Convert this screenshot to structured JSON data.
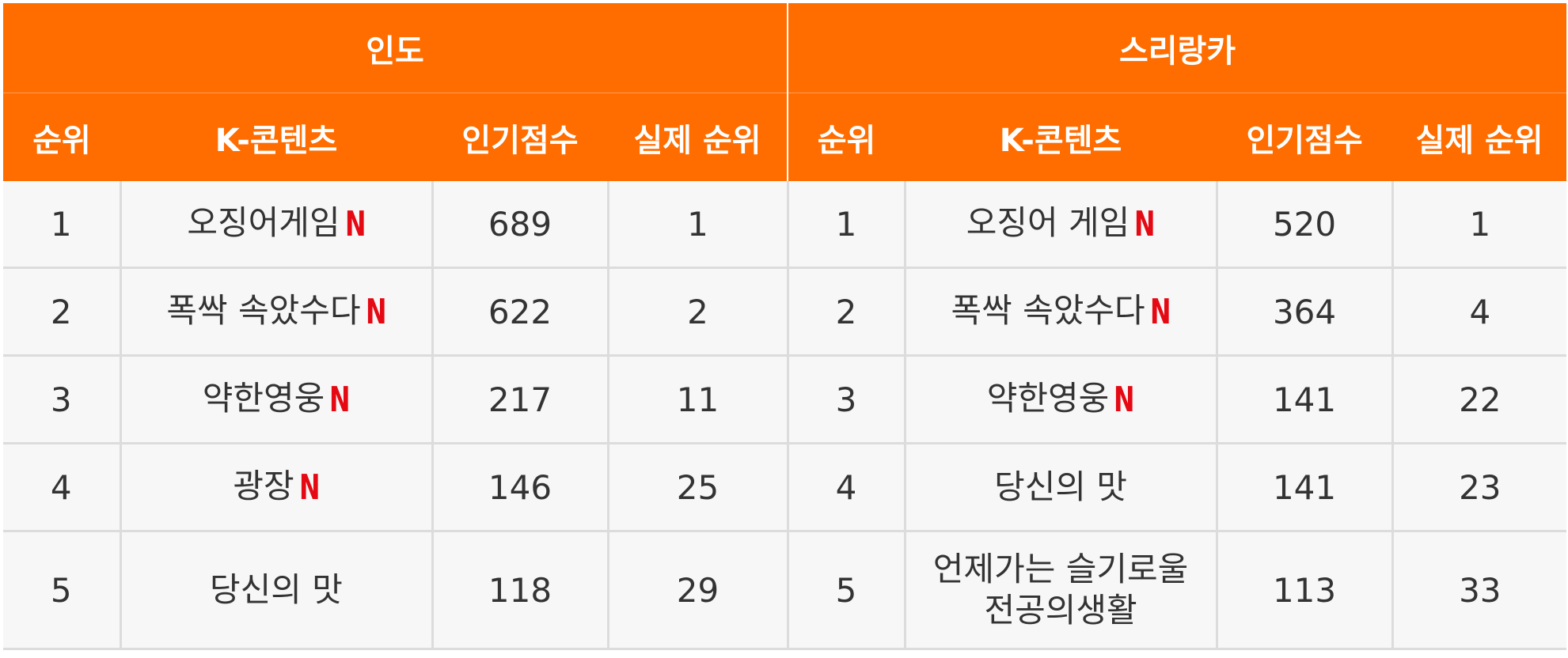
{
  "groups": [
    {
      "country": "인도",
      "headers": {
        "rank": "순위",
        "content": "K-콘텐츠",
        "score": "인기점수",
        "actual": "실제 순위"
      },
      "rows": [
        {
          "rank": "1",
          "title": "오징어게임",
          "netflix": true,
          "score": "689",
          "actual": "1"
        },
        {
          "rank": "2",
          "title": "폭싹 속았수다",
          "netflix": true,
          "score": "622",
          "actual": "2"
        },
        {
          "rank": "3",
          "title": "약한영웅",
          "netflix": true,
          "score": "217",
          "actual": "11"
        },
        {
          "rank": "4",
          "title": "광장",
          "netflix": true,
          "score": "146",
          "actual": "25"
        },
        {
          "rank": "5",
          "title": "당신의 맛",
          "netflix": false,
          "score": "118",
          "actual": "29"
        }
      ]
    },
    {
      "country": "스리랑카",
      "headers": {
        "rank": "순위",
        "content": "K-콘텐츠",
        "score": "인기점수",
        "actual": "실제 순위"
      },
      "rows": [
        {
          "rank": "1",
          "title": "오징어 게임",
          "netflix": true,
          "score": "520",
          "actual": "1"
        },
        {
          "rank": "2",
          "title": "폭싹 속았수다",
          "netflix": true,
          "score": "364",
          "actual": "4"
        },
        {
          "rank": "3",
          "title": "약한영웅",
          "netflix": true,
          "score": "141",
          "actual": "22"
        },
        {
          "rank": "4",
          "title": "당신의 맛",
          "netflix": false,
          "score": "141",
          "actual": "23"
        },
        {
          "rank": "5",
          "title": "언제가는 슬기로울",
          "title_line2": "전공의생활",
          "netflix": false,
          "score": "113",
          "actual": "33"
        }
      ]
    }
  ],
  "netflix_mark": "N",
  "colors": {
    "header_bg": "#ff6d00",
    "header_text": "#ffffff",
    "cell_bg": "#f7f7f7",
    "cell_text": "#333333",
    "netflix_red": "#e50914",
    "border": "#dcdcdc"
  },
  "icons": {
    "netflix": "netflix-logo-icon"
  }
}
